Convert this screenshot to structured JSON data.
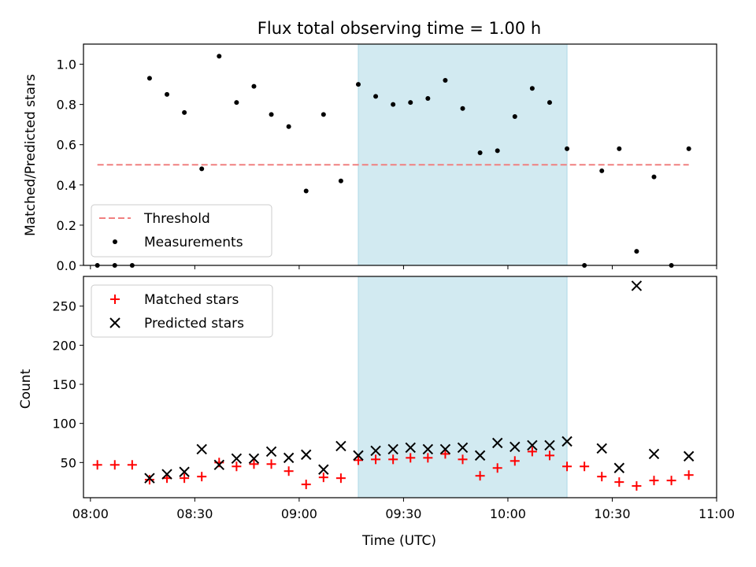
{
  "title": "Flux total observing time = 1.00 h",
  "colors": {
    "threshold": "#f08080",
    "measurements": "#000000",
    "matched": "#ff0000",
    "predicted": "#000000",
    "span": "#add8e6"
  },
  "chart_data": [
    {
      "type": "scatter",
      "ylabel": "Matched/Predicted stars",
      "ylim": [
        0,
        1.1
      ],
      "yticks": [
        "0.0",
        "0.2",
        "0.4",
        "0.6",
        "0.8",
        "1.0"
      ],
      "xlim": [
        "07:58",
        "11:00"
      ],
      "shaded_span": [
        "09:17",
        "10:17"
      ],
      "threshold": {
        "name": "Threshold",
        "x": [
          "08:02",
          "10:52"
        ],
        "y": 0.5
      },
      "legend": {
        "position": "lower-left",
        "entries": [
          "Threshold",
          "Measurements"
        ]
      },
      "series": [
        {
          "name": "Measurements",
          "points": [
            [
              "08:02",
              0.0
            ],
            [
              "08:07",
              0.0
            ],
            [
              "08:12",
              0.0
            ],
            [
              "08:17",
              0.93
            ],
            [
              "08:22",
              0.85
            ],
            [
              "08:27",
              0.76
            ],
            [
              "08:32",
              0.48
            ],
            [
              "08:37",
              1.04
            ],
            [
              "08:42",
              0.81
            ],
            [
              "08:47",
              0.89
            ],
            [
              "08:52",
              0.75
            ],
            [
              "08:57",
              0.69
            ],
            [
              "09:02",
              0.37
            ],
            [
              "09:07",
              0.75
            ],
            [
              "09:12",
              0.42
            ],
            [
              "09:17",
              0.9
            ],
            [
              "09:22",
              0.84
            ],
            [
              "09:27",
              0.8
            ],
            [
              "09:32",
              0.81
            ],
            [
              "09:37",
              0.83
            ],
            [
              "09:42",
              0.92
            ],
            [
              "09:47",
              0.78
            ],
            [
              "09:52",
              0.56
            ],
            [
              "09:57",
              0.57
            ],
            [
              "10:02",
              0.74
            ],
            [
              "10:07",
              0.88
            ],
            [
              "10:12",
              0.81
            ],
            [
              "10:17",
              0.58
            ],
            [
              "10:22",
              0.0
            ],
            [
              "10:27",
              0.47
            ],
            [
              "10:32",
              0.58
            ],
            [
              "10:37",
              0.07
            ],
            [
              "10:42",
              0.44
            ],
            [
              "10:47",
              0.0
            ],
            [
              "10:52",
              0.58
            ]
          ]
        }
      ]
    },
    {
      "type": "scatter",
      "xlabel": "Time (UTC)",
      "ylabel": "Count",
      "ylim": [
        5,
        288
      ],
      "yticks": [
        "50",
        "100",
        "150",
        "200",
        "250"
      ],
      "xlim": [
        "07:58",
        "11:00"
      ],
      "xticks": [
        "08:00",
        "08:30",
        "09:00",
        "09:30",
        "10:00",
        "10:30",
        "11:00"
      ],
      "shaded_span": [
        "09:17",
        "10:17"
      ],
      "legend": {
        "position": "upper-left",
        "entries": [
          "Matched stars",
          "Predicted stars"
        ]
      },
      "series": [
        {
          "name": "Matched stars",
          "marker": "plus",
          "points": [
            [
              "08:02",
              47
            ],
            [
              "08:07",
              47
            ],
            [
              "08:12",
              47
            ],
            [
              "08:17",
              28
            ],
            [
              "08:22",
              30
            ],
            [
              "08:27",
              30
            ],
            [
              "08:32",
              32
            ],
            [
              "08:37",
              50
            ],
            [
              "08:42",
              45
            ],
            [
              "08:47",
              48
            ],
            [
              "08:52",
              48
            ],
            [
              "08:57",
              39
            ],
            [
              "09:02",
              22
            ],
            [
              "09:07",
              31
            ],
            [
              "09:12",
              30
            ],
            [
              "09:17",
              53
            ],
            [
              "09:22",
              54
            ],
            [
              "09:27",
              54
            ],
            [
              "09:32",
              56
            ],
            [
              "09:37",
              56
            ],
            [
              "09:42",
              61
            ],
            [
              "09:47",
              54
            ],
            [
              "09:52",
              33
            ],
            [
              "09:57",
              43
            ],
            [
              "10:02",
              52
            ],
            [
              "10:07",
              64
            ],
            [
              "10:12",
              59
            ],
            [
              "10:17",
              45
            ],
            [
              "10:22",
              45
            ],
            [
              "10:27",
              32
            ],
            [
              "10:32",
              25
            ],
            [
              "10:37",
              20
            ],
            [
              "10:42",
              27
            ],
            [
              "10:47",
              27
            ],
            [
              "10:52",
              34
            ]
          ]
        },
        {
          "name": "Predicted stars",
          "marker": "x",
          "points": [
            [
              "08:17",
              30
            ],
            [
              "08:22",
              35
            ],
            [
              "08:27",
              38
            ],
            [
              "08:32",
              67
            ],
            [
              "08:37",
              47
            ],
            [
              "08:42",
              55
            ],
            [
              "08:47",
              55
            ],
            [
              "08:52",
              64
            ],
            [
              "08:57",
              56
            ],
            [
              "09:02",
              60
            ],
            [
              "09:07",
              41
            ],
            [
              "09:12",
              71
            ],
            [
              "09:17",
              59
            ],
            [
              "09:22",
              65
            ],
            [
              "09:27",
              67
            ],
            [
              "09:32",
              69
            ],
            [
              "09:37",
              67
            ],
            [
              "09:42",
              67
            ],
            [
              "09:47",
              69
            ],
            [
              "09:52",
              59
            ],
            [
              "09:57",
              75
            ],
            [
              "10:02",
              70
            ],
            [
              "10:07",
              72
            ],
            [
              "10:12",
              72
            ],
            [
              "10:17",
              77
            ],
            [
              "10:27",
              68
            ],
            [
              "10:32",
              43
            ],
            [
              "10:37",
              276
            ],
            [
              "10:42",
              61
            ],
            [
              "10:52",
              58
            ]
          ]
        }
      ]
    }
  ]
}
